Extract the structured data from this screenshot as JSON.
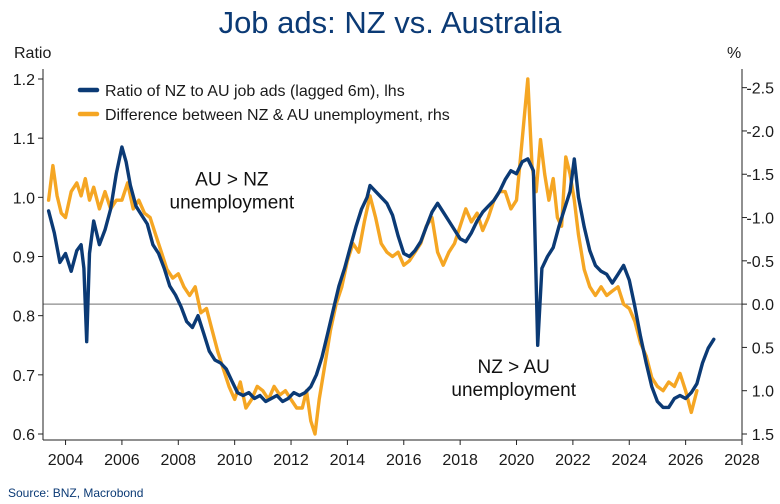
{
  "chart_data": {
    "type": "line",
    "title": "Job ads: NZ vs. Australia",
    "source": "Source: BNZ, Macrobond",
    "y_left": {
      "label": "Ratio",
      "range": [
        0.6,
        1.2
      ],
      "ticks": [
        0.6,
        0.7,
        0.8,
        0.9,
        1.0,
        1.1,
        1.2
      ],
      "tick_labels": [
        "0.6",
        "0.7",
        "0.8",
        "0.9",
        "1.0",
        "1.1",
        "1.2"
      ]
    },
    "y_right": {
      "label": "%",
      "inverted": true,
      "range": [
        -2.6,
        1.5
      ],
      "ticks": [
        -2.5,
        -2.0,
        -1.5,
        -1.0,
        -0.5,
        0.0,
        0.5,
        1.0,
        1.5
      ],
      "tick_labels": [
        "-2.5",
        "-2.0",
        "-1.5",
        "-1.0",
        "-0.5",
        "0.0",
        "0.5",
        "1.0",
        "1.5"
      ]
    },
    "x_axis": {
      "range": [
        2003.2,
        2028.0
      ],
      "ticks": [
        2004,
        2006,
        2008,
        2010,
        2012,
        2014,
        2016,
        2018,
        2020,
        2022,
        2024,
        2026,
        2028
      ],
      "tick_labels": [
        "2004",
        "2006",
        "2008",
        "2010",
        "2012",
        "2014",
        "2016",
        "2018",
        "2020",
        "2022",
        "2024",
        "2026",
        "2028"
      ]
    },
    "reference_line": {
      "axis": "right",
      "value": 0.0
    },
    "annotations": [
      {
        "lines": [
          "AU > NZ",
          "unemployment"
        ],
        "x": 2009.9,
        "y": 1.003
      },
      {
        "lines": [
          "NZ > AU",
          "unemployment"
        ],
        "x": 2019.9,
        "y": 0.686
      }
    ],
    "legend_position": "top-left",
    "series": [
      {
        "name": "Ratio of NZ to AU job ads (lagged 6m), lhs",
        "axis": "left",
        "color": "#0b3a75",
        "points": [
          [
            2003.4,
            0.977
          ],
          [
            2003.6,
            0.94
          ],
          [
            2003.8,
            0.89
          ],
          [
            2004.0,
            0.905
          ],
          [
            2004.2,
            0.875
          ],
          [
            2004.4,
            0.91
          ],
          [
            2004.55,
            0.92
          ],
          [
            2004.65,
            0.88
          ],
          [
            2004.75,
            0.756
          ],
          [
            2004.85,
            0.905
          ],
          [
            2005.0,
            0.96
          ],
          [
            2005.2,
            0.92
          ],
          [
            2005.4,
            0.945
          ],
          [
            2005.6,
            0.98
          ],
          [
            2005.8,
            1.04
          ],
          [
            2006.0,
            1.085
          ],
          [
            2006.15,
            1.06
          ],
          [
            2006.3,
            1.02
          ],
          [
            2006.5,
            0.985
          ],
          [
            2006.7,
            0.97
          ],
          [
            2006.9,
            0.955
          ],
          [
            2007.1,
            0.92
          ],
          [
            2007.3,
            0.905
          ],
          [
            2007.5,
            0.88
          ],
          [
            2007.7,
            0.85
          ],
          [
            2007.9,
            0.835
          ],
          [
            2008.1,
            0.815
          ],
          [
            2008.3,
            0.79
          ],
          [
            2008.5,
            0.78
          ],
          [
            2008.7,
            0.8
          ],
          [
            2008.9,
            0.77
          ],
          [
            2009.1,
            0.74
          ],
          [
            2009.3,
            0.725
          ],
          [
            2009.5,
            0.72
          ],
          [
            2009.7,
            0.71
          ],
          [
            2009.9,
            0.69
          ],
          [
            2010.1,
            0.67
          ],
          [
            2010.3,
            0.665
          ],
          [
            2010.5,
            0.67
          ],
          [
            2010.7,
            0.66
          ],
          [
            2010.9,
            0.665
          ],
          [
            2011.1,
            0.655
          ],
          [
            2011.3,
            0.66
          ],
          [
            2011.5,
            0.665
          ],
          [
            2011.7,
            0.655
          ],
          [
            2011.9,
            0.66
          ],
          [
            2012.1,
            0.67
          ],
          [
            2012.3,
            0.665
          ],
          [
            2012.5,
            0.67
          ],
          [
            2012.7,
            0.68
          ],
          [
            2012.9,
            0.7
          ],
          [
            2013.1,
            0.73
          ],
          [
            2013.3,
            0.77
          ],
          [
            2013.5,
            0.81
          ],
          [
            2013.7,
            0.85
          ],
          [
            2013.9,
            0.88
          ],
          [
            2014.1,
            0.915
          ],
          [
            2014.3,
            0.95
          ],
          [
            2014.5,
            0.98
          ],
          [
            2014.7,
            1.0
          ],
          [
            2014.8,
            1.02
          ],
          [
            2015.0,
            1.01
          ],
          [
            2015.2,
            1.0
          ],
          [
            2015.4,
            0.99
          ],
          [
            2015.6,
            0.97
          ],
          [
            2015.8,
            0.935
          ],
          [
            2016.0,
            0.905
          ],
          [
            2016.2,
            0.9
          ],
          [
            2016.4,
            0.91
          ],
          [
            2016.6,
            0.925
          ],
          [
            2016.8,
            0.95
          ],
          [
            2017.0,
            0.975
          ],
          [
            2017.2,
            0.99
          ],
          [
            2017.4,
            0.975
          ],
          [
            2017.6,
            0.96
          ],
          [
            2017.8,
            0.945
          ],
          [
            2018.0,
            0.93
          ],
          [
            2018.2,
            0.925
          ],
          [
            2018.4,
            0.94
          ],
          [
            2018.6,
            0.96
          ],
          [
            2018.8,
            0.975
          ],
          [
            2019.0,
            0.985
          ],
          [
            2019.2,
            0.995
          ],
          [
            2019.4,
            1.01
          ],
          [
            2019.6,
            1.03
          ],
          [
            2019.8,
            1.045
          ],
          [
            2020.0,
            1.04
          ],
          [
            2020.2,
            1.06
          ],
          [
            2020.4,
            1.065
          ],
          [
            2020.6,
            1.045
          ],
          [
            2020.75,
            0.75
          ],
          [
            2020.9,
            0.88
          ],
          [
            2021.1,
            0.9
          ],
          [
            2021.3,
            0.915
          ],
          [
            2021.5,
            0.95
          ],
          [
            2021.7,
            0.98
          ],
          [
            2021.9,
            1.01
          ],
          [
            2022.05,
            1.065
          ],
          [
            2022.2,
            1.0
          ],
          [
            2022.4,
            0.95
          ],
          [
            2022.6,
            0.91
          ],
          [
            2022.8,
            0.885
          ],
          [
            2023.0,
            0.875
          ],
          [
            2023.2,
            0.87
          ],
          [
            2023.4,
            0.855
          ],
          [
            2023.6,
            0.87
          ],
          [
            2023.8,
            0.885
          ],
          [
            2024.0,
            0.86
          ],
          [
            2024.2,
            0.815
          ],
          [
            2024.4,
            0.765
          ],
          [
            2024.6,
            0.72
          ],
          [
            2024.8,
            0.68
          ],
          [
            2025.0,
            0.655
          ],
          [
            2025.2,
            0.645
          ],
          [
            2025.4,
            0.645
          ],
          [
            2025.6,
            0.66
          ],
          [
            2025.8,
            0.665
          ],
          [
            2026.0,
            0.66
          ],
          [
            2026.2,
            0.67
          ],
          [
            2026.4,
            0.685
          ],
          [
            2026.6,
            0.72
          ],
          [
            2026.8,
            0.745
          ],
          [
            2027.0,
            0.76
          ]
        ]
      },
      {
        "name": "Difference between NZ & AU unemployment, rhs",
        "axis": "right",
        "color": "#f5a623",
        "points": [
          [
            2003.4,
            -1.2
          ],
          [
            2003.55,
            -1.6
          ],
          [
            2003.7,
            -1.25
          ],
          [
            2003.85,
            -1.05
          ],
          [
            2004.0,
            -1.0
          ],
          [
            2004.2,
            -1.3
          ],
          [
            2004.4,
            -1.4
          ],
          [
            2004.55,
            -1.25
          ],
          [
            2004.7,
            -1.45
          ],
          [
            2004.85,
            -1.2
          ],
          [
            2005.0,
            -1.35
          ],
          [
            2005.2,
            -1.1
          ],
          [
            2005.4,
            -1.3
          ],
          [
            2005.6,
            -1.1
          ],
          [
            2005.8,
            -1.2
          ],
          [
            2006.0,
            -1.2
          ],
          [
            2006.2,
            -1.4
          ],
          [
            2006.4,
            -1.1
          ],
          [
            2006.6,
            -1.2
          ],
          [
            2006.8,
            -1.05
          ],
          [
            2007.0,
            -1.0
          ],
          [
            2007.2,
            -0.8
          ],
          [
            2007.4,
            -0.6
          ],
          [
            2007.6,
            -0.4
          ],
          [
            2007.8,
            -0.3
          ],
          [
            2008.0,
            -0.35
          ],
          [
            2008.2,
            -0.2
          ],
          [
            2008.4,
            -0.1
          ],
          [
            2008.6,
            -0.2
          ],
          [
            2008.8,
            0.1
          ],
          [
            2009.0,
            0.05
          ],
          [
            2009.2,
            0.3
          ],
          [
            2009.4,
            0.55
          ],
          [
            2009.6,
            0.75
          ],
          [
            2009.8,
            0.95
          ],
          [
            2010.0,
            1.1
          ],
          [
            2010.2,
            0.9
          ],
          [
            2010.4,
            1.2
          ],
          [
            2010.6,
            1.1
          ],
          [
            2010.8,
            0.95
          ],
          [
            2011.0,
            1.0
          ],
          [
            2011.2,
            1.1
          ],
          [
            2011.4,
            0.95
          ],
          [
            2011.6,
            1.05
          ],
          [
            2011.8,
            1.0
          ],
          [
            2012.0,
            1.1
          ],
          [
            2012.2,
            1.2
          ],
          [
            2012.4,
            1.2
          ],
          [
            2012.55,
            1.0
          ],
          [
            2012.7,
            1.35
          ],
          [
            2012.85,
            1.5
          ],
          [
            2013.0,
            1.1
          ],
          [
            2013.2,
            0.7
          ],
          [
            2013.4,
            0.3
          ],
          [
            2013.6,
            0.0
          ],
          [
            2013.8,
            -0.2
          ],
          [
            2014.0,
            -0.5
          ],
          [
            2014.2,
            -0.7
          ],
          [
            2014.4,
            -0.6
          ],
          [
            2014.6,
            -0.95
          ],
          [
            2014.8,
            -1.25
          ],
          [
            2015.0,
            -1.0
          ],
          [
            2015.2,
            -0.7
          ],
          [
            2015.4,
            -0.6
          ],
          [
            2015.6,
            -0.55
          ],
          [
            2015.8,
            -0.6
          ],
          [
            2016.0,
            -0.45
          ],
          [
            2016.2,
            -0.5
          ],
          [
            2016.4,
            -0.6
          ],
          [
            2016.6,
            -0.7
          ],
          [
            2016.8,
            -0.9
          ],
          [
            2017.0,
            -1.0
          ],
          [
            2017.2,
            -0.6
          ],
          [
            2017.4,
            -0.45
          ],
          [
            2017.6,
            -0.6
          ],
          [
            2017.8,
            -0.7
          ],
          [
            2018.0,
            -0.9
          ],
          [
            2018.2,
            -1.1
          ],
          [
            2018.4,
            -0.95
          ],
          [
            2018.6,
            -1.05
          ],
          [
            2018.8,
            -0.85
          ],
          [
            2019.0,
            -1.0
          ],
          [
            2019.2,
            -1.2
          ],
          [
            2019.4,
            -1.3
          ],
          [
            2019.6,
            -1.3
          ],
          [
            2019.8,
            -1.1
          ],
          [
            2020.0,
            -1.2
          ],
          [
            2020.2,
            -1.9
          ],
          [
            2020.4,
            -2.6
          ],
          [
            2020.55,
            -1.6
          ],
          [
            2020.7,
            -1.3
          ],
          [
            2020.85,
            -1.9
          ],
          [
            2021.0,
            -1.5
          ],
          [
            2021.15,
            -1.2
          ],
          [
            2021.3,
            -1.45
          ],
          [
            2021.45,
            -1.0
          ],
          [
            2021.6,
            -0.9
          ],
          [
            2021.75,
            -1.7
          ],
          [
            2021.9,
            -1.5
          ],
          [
            2022.05,
            -1.2
          ],
          [
            2022.2,
            -0.8
          ],
          [
            2022.4,
            -0.4
          ],
          [
            2022.6,
            -0.2
          ],
          [
            2022.8,
            -0.1
          ],
          [
            2023.0,
            -0.2
          ],
          [
            2023.2,
            -0.1
          ],
          [
            2023.4,
            -0.15
          ],
          [
            2023.6,
            -0.2
          ],
          [
            2023.8,
            0.0
          ],
          [
            2024.0,
            0.05
          ],
          [
            2024.2,
            0.2
          ],
          [
            2024.4,
            0.45
          ],
          [
            2024.6,
            0.6
          ],
          [
            2024.8,
            0.85
          ],
          [
            2025.0,
            0.95
          ],
          [
            2025.2,
            1.0
          ],
          [
            2025.4,
            0.9
          ],
          [
            2025.6,
            0.95
          ],
          [
            2025.8,
            0.8
          ],
          [
            2026.0,
            1.0
          ],
          [
            2026.2,
            1.25
          ],
          [
            2026.4,
            1.0
          ]
        ]
      }
    ]
  }
}
